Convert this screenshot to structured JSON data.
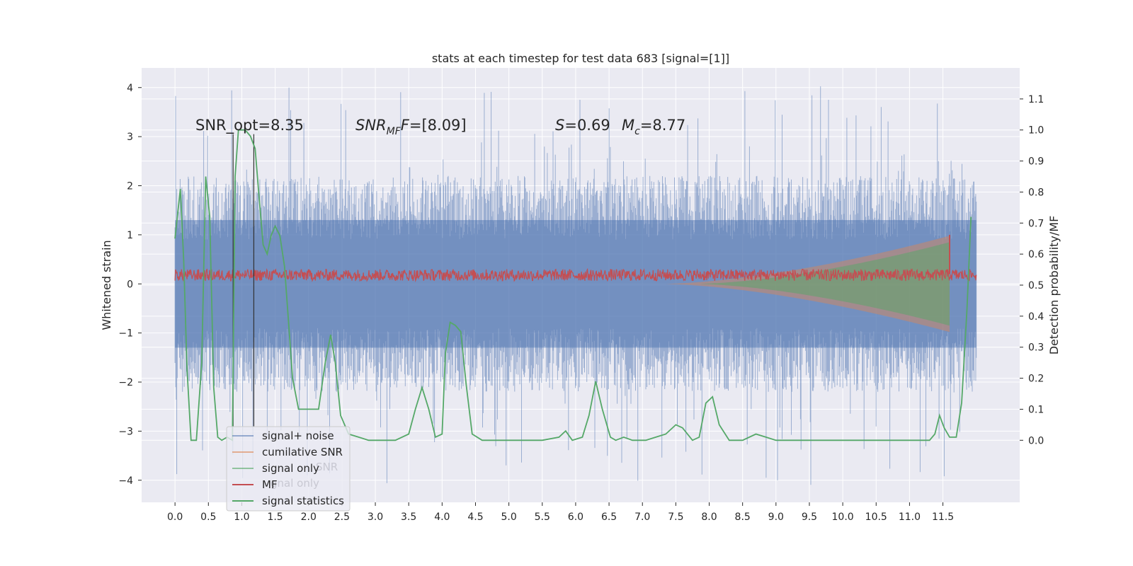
{
  "chart_data": {
    "type": "line",
    "title": "stats at each timestep for test data 683 [signal=[1]]",
    "xlabel": "",
    "ylabel": "Whitened strain",
    "y2label": "Detection probability/MF",
    "xlim": [
      -0.5,
      12.65
    ],
    "ylim": [
      -4.45,
      4.4
    ],
    "y2lim": [
      -0.2,
      1.2
    ],
    "x_ticks": [
      0.0,
      0.5,
      1.0,
      1.5,
      2.0,
      2.5,
      3.0,
      3.5,
      4.0,
      4.5,
      5.0,
      5.5,
      6.0,
      6.5,
      7.0,
      7.5,
      8.0,
      8.5,
      9.0,
      9.5,
      10.0,
      10.5,
      11.0,
      11.5
    ],
    "x_tick_labels": [
      "0.0",
      "0.5",
      "1.0",
      "1.5",
      "2.0",
      "2.5",
      "3.0",
      "3.5",
      "4.0",
      "4.5",
      "5.0",
      "5.5",
      "6.0",
      "6.5",
      "7.0",
      "7.5",
      "8.0",
      "8.5",
      "9.0",
      "9.5",
      "10.0",
      "10.5",
      "11.0",
      "11.5"
    ],
    "y_ticks": [
      4,
      3,
      2,
      1,
      0,
      -1,
      -2,
      -3,
      -4
    ],
    "y_tick_labels": [
      "4",
      "3",
      "2",
      "1",
      "0",
      "−1",
      "−2",
      "−3",
      "−4"
    ],
    "y2_ticks": [
      1.1,
      1.0,
      0.9,
      0.8,
      0.7,
      0.6,
      0.5,
      0.4,
      0.3,
      0.2,
      0.1,
      0.0
    ],
    "y2_tick_labels": [
      "1.1",
      "1.0",
      "0.9",
      "0.8",
      "0.7",
      "0.6",
      "0.5",
      "0.4",
      "0.3",
      "0.2",
      "0.1",
      "0.0"
    ],
    "annotations": {
      "snr_opt": "SNR_opt=8.35",
      "snr_mf_main": "SNR",
      "snr_mf_sub": "MF",
      "snr_mf_value": "=[8.09]",
      "s_symbol": "S",
      "s_value": "=0.69",
      "mc_symbol": "M",
      "mc_sub": "c",
      "mc_value": "=8.77"
    },
    "vlines_x": [
      0.87,
      1.18
    ],
    "noise_band": {
      "x_start": 0.0,
      "x_end": 12.0,
      "amplitude_typical": 1.9,
      "amplitude_peak": 4.05,
      "peak_min": -4.1,
      "color": "#4c72b0"
    },
    "cumulative_snr_band": {
      "x_start": 7.3,
      "x_end": 11.6,
      "half_width_end": 0.98,
      "color": "#dd8452"
    },
    "signal_only_band": {
      "x_start": 7.8,
      "x_end": 11.6,
      "half_width_end": 0.85,
      "color": "#55a868"
    },
    "mf_series": {
      "x_start": 0.0,
      "x_end": 12.0,
      "mean": 0.18,
      "jitter": 0.12,
      "spike_x": 11.6,
      "spike_y": 1.0,
      "color": "#c44e52"
    },
    "signal_statistics": {
      "color": "#55a868",
      "axis": "right",
      "points": [
        [
          0.0,
          0.65
        ],
        [
          0.08,
          0.81
        ],
        [
          0.13,
          0.58
        ],
        [
          0.18,
          0.23
        ],
        [
          0.24,
          0.0
        ],
        [
          0.32,
          0.0
        ],
        [
          0.4,
          0.25
        ],
        [
          0.46,
          0.85
        ],
        [
          0.52,
          0.72
        ],
        [
          0.58,
          0.17
        ],
        [
          0.64,
          0.01
        ],
        [
          0.7,
          0.0
        ],
        [
          0.78,
          0.01
        ],
        [
          0.86,
          0.0
        ],
        [
          0.9,
          0.85
        ],
        [
          0.95,
          1.0
        ],
        [
          1.05,
          1.0
        ],
        [
          1.13,
          0.98
        ],
        [
          1.2,
          0.94
        ],
        [
          1.26,
          0.78
        ],
        [
          1.32,
          0.63
        ],
        [
          1.38,
          0.6
        ],
        [
          1.44,
          0.66
        ],
        [
          1.5,
          0.69
        ],
        [
          1.57,
          0.66
        ],
        [
          1.64,
          0.56
        ],
        [
          1.7,
          0.38
        ],
        [
          1.76,
          0.2
        ],
        [
          1.85,
          0.1
        ],
        [
          1.95,
          0.1
        ],
        [
          2.05,
          0.1
        ],
        [
          2.15,
          0.1
        ],
        [
          2.25,
          0.25
        ],
        [
          2.33,
          0.34
        ],
        [
          2.4,
          0.25
        ],
        [
          2.48,
          0.08
        ],
        [
          2.6,
          0.02
        ],
        [
          2.75,
          0.01
        ],
        [
          2.9,
          0.0
        ],
        [
          3.1,
          0.0
        ],
        [
          3.3,
          0.0
        ],
        [
          3.5,
          0.02
        ],
        [
          3.6,
          0.1
        ],
        [
          3.7,
          0.17
        ],
        [
          3.8,
          0.1
        ],
        [
          3.9,
          0.01
        ],
        [
          4.0,
          0.02
        ],
        [
          4.05,
          0.28
        ],
        [
          4.12,
          0.38
        ],
        [
          4.2,
          0.37
        ],
        [
          4.28,
          0.35
        ],
        [
          4.36,
          0.18
        ],
        [
          4.45,
          0.02
        ],
        [
          4.6,
          0.0
        ],
        [
          5.0,
          0.0
        ],
        [
          5.5,
          0.0
        ],
        [
          5.75,
          0.01
        ],
        [
          5.85,
          0.03
        ],
        [
          5.95,
          0.0
        ],
        [
          6.1,
          0.01
        ],
        [
          6.2,
          0.08
        ],
        [
          6.3,
          0.19
        ],
        [
          6.4,
          0.1
        ],
        [
          6.52,
          0.01
        ],
        [
          6.6,
          0.0
        ],
        [
          6.72,
          0.01
        ],
        [
          6.85,
          0.0
        ],
        [
          7.05,
          0.0
        ],
        [
          7.2,
          0.01
        ],
        [
          7.35,
          0.02
        ],
        [
          7.5,
          0.05
        ],
        [
          7.6,
          0.04
        ],
        [
          7.75,
          0.0
        ],
        [
          7.85,
          0.01
        ],
        [
          7.95,
          0.12
        ],
        [
          8.05,
          0.14
        ],
        [
          8.15,
          0.05
        ],
        [
          8.3,
          0.0
        ],
        [
          8.5,
          0.0
        ],
        [
          8.7,
          0.02
        ],
        [
          8.85,
          0.01
        ],
        [
          9.0,
          0.0
        ],
        [
          9.5,
          0.0
        ],
        [
          10.0,
          0.0
        ],
        [
          10.5,
          0.0
        ],
        [
          11.0,
          0.0
        ],
        [
          11.3,
          0.0
        ],
        [
          11.38,
          0.02
        ],
        [
          11.45,
          0.08
        ],
        [
          11.52,
          0.04
        ],
        [
          11.6,
          0.01
        ],
        [
          11.7,
          0.01
        ],
        [
          11.78,
          0.12
        ],
        [
          11.86,
          0.42
        ],
        [
          11.92,
          0.72
        ]
      ]
    },
    "legend": {
      "placement": "lower-left",
      "entries": [
        {
          "label": "signal+ noise",
          "color": "#4c72b0"
        },
        {
          "label": "cumilative SNR",
          "color": "#dd8452"
        },
        {
          "label": "signal only",
          "color": "#55a868"
        },
        {
          "label": "MF",
          "color": "#c44e52"
        },
        {
          "label": "signal statistics",
          "color": "#55a868"
        }
      ],
      "ghost_labels": [
        "SNR",
        "gnal only"
      ]
    },
    "grid": true,
    "colors": {
      "background": "#eaeaf2",
      "grid": "#ffffff",
      "text": "#262626"
    }
  }
}
